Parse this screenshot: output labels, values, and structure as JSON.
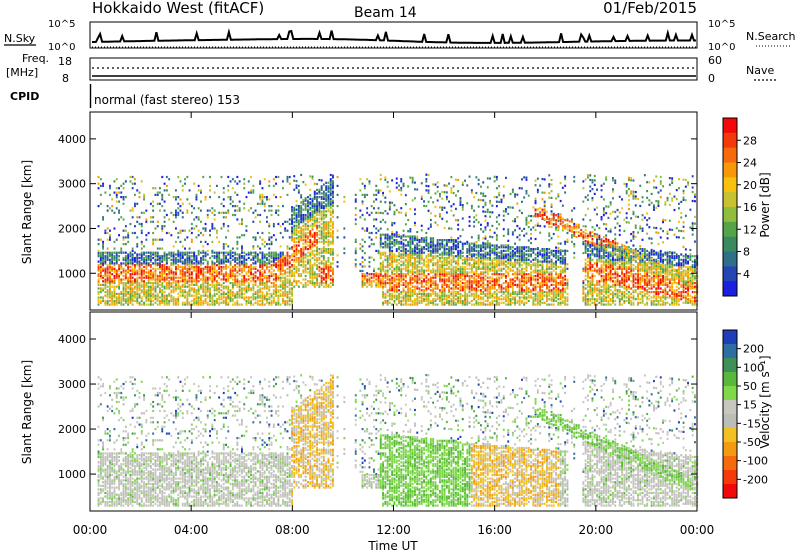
{
  "header": {
    "title": "Hokkaido West (fitACF)",
    "beam": "Beam 14",
    "date": "01/Feb/2015"
  },
  "nsky_panel": {
    "left_label": "N.Sky",
    "right_label": "N.Search",
    "left_ticks": [
      "10^5",
      "10^0"
    ],
    "right_ticks": [
      "10^5",
      "10^0"
    ]
  },
  "freq_panel": {
    "left_label_top": "Freq.",
    "left_label_bottom": "[MHz]",
    "right_label": "Nave",
    "left_ticks": [
      "18",
      "8"
    ],
    "right_ticks": [
      "60",
      "0"
    ]
  },
  "cpid": {
    "label": "CPID",
    "text": "normal (fast stereo) 153"
  },
  "chart_data": [
    {
      "type": "heatmap",
      "name": "power",
      "ylabel": "Slant Range [km]",
      "yticks": [
        1000,
        2000,
        3000,
        4000
      ],
      "ylim": [
        180,
        4600
      ],
      "colorbar": {
        "label": "Power [dB]",
        "ticks": [
          "28",
          "24",
          "20",
          "16",
          "12",
          "8",
          "4"
        ],
        "colors": [
          "#f20a0a",
          "#f23a0a",
          "#f56a0a",
          "#f7970a",
          "#f7c10e",
          "#c8c232",
          "#8fbd3c",
          "#55a548",
          "#3a8a60",
          "#2e6f8a",
          "#2346b4",
          "#1a1fe0"
        ]
      },
      "regions": [
        {
          "x": [
            0.3,
            7.9
          ],
          "y": [
            300,
            1500
          ],
          "peak_range_km": 1000,
          "power_db": "12-30"
        },
        {
          "x": [
            7.9,
            9.5
          ],
          "y": [
            400,
            3200
          ],
          "power_db": "8-20"
        },
        {
          "x": [
            10.8,
            11.3
          ],
          "y": [
            1000,
            2600
          ],
          "power_db": "8-16"
        },
        {
          "x": [
            11.4,
            18.8
          ],
          "y": [
            300,
            1900
          ],
          "peak_range_km": 800,
          "power_db": "12-30"
        },
        {
          "x": [
            15.5,
            22.0
          ],
          "y": [
            1500,
            3100
          ],
          "power_db": "8-28"
        },
        {
          "x": [
            19.5,
            24.0
          ],
          "y": [
            300,
            1700
          ],
          "power_db": "16-30"
        }
      ]
    },
    {
      "type": "heatmap",
      "name": "velocity",
      "ylabel": "Slant Range [km]",
      "xlabel": "Time UT",
      "xticks": [
        "00:00",
        "04:00",
        "08:00",
        "12:00",
        "16:00",
        "20:00",
        "00:00"
      ],
      "xlim": [
        0,
        24
      ],
      "yticks": [
        1000,
        2000,
        3000,
        4000
      ],
      "ylim": [
        180,
        4600
      ],
      "colorbar": {
        "label": "Velocity [m s⁻¹]",
        "ticks": [
          "200",
          "100",
          "50",
          "15",
          "-15",
          "-50",
          "-100",
          "-200"
        ],
        "colors": [
          "#1f3fb8",
          "#2e6ea0",
          "#3f8f58",
          "#58b83c",
          "#7ed84a",
          "#c7c7c0",
          "#bcbcb8",
          "#f2c020",
          "#f29a12",
          "#f56a0e",
          "#f53a0a",
          "#f20a0a"
        ]
      },
      "regions": [
        {
          "x": [
            0.3,
            7.9
          ],
          "y": [
            300,
            1600
          ],
          "velocity_ms": "-15 to 15"
        },
        {
          "x": [
            7.9,
            9.5
          ],
          "y": [
            400,
            3000
          ],
          "velocity_ms": "-50 to -15"
        },
        {
          "x": [
            11.4,
            15.0
          ],
          "y": [
            300,
            1900
          ],
          "velocity_ms": "15 to 50"
        },
        {
          "x": [
            14.5,
            18.5
          ],
          "y": [
            300,
            1500
          ],
          "velocity_ms": "-50 to -15"
        },
        {
          "x": [
            17.0,
            22.0
          ],
          "y": [
            1500,
            3000
          ],
          "velocity_ms": "-15 to 50"
        },
        {
          "x": [
            19.5,
            24.0
          ],
          "y": [
            300,
            1600
          ],
          "velocity_ms": "-15 to 15"
        }
      ]
    }
  ]
}
